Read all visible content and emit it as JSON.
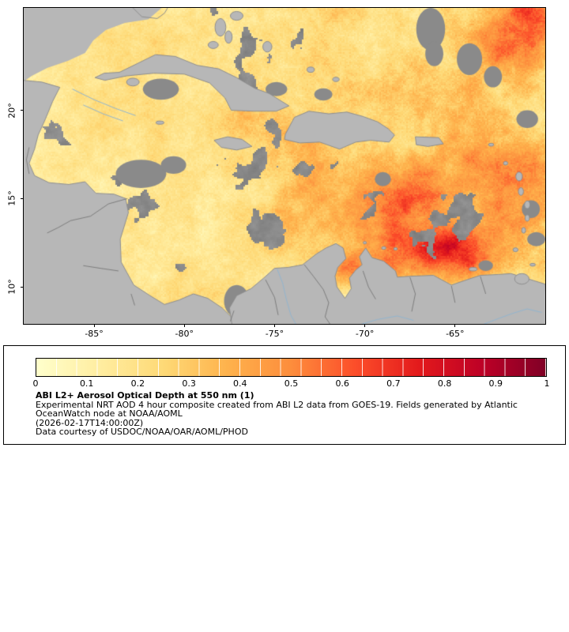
{
  "figure": {
    "background": "#ffffff"
  },
  "map": {
    "extent": {
      "lon_min": -88.9,
      "lon_max": -60.0,
      "lat_min": 7.9,
      "lat_max": 25.8
    },
    "x_ticks": [
      {
        "lon": -85,
        "label": "-85°"
      },
      {
        "lon": -80,
        "label": "-80°"
      },
      {
        "lon": -75,
        "label": "-75°"
      },
      {
        "lon": -70,
        "label": "-70°"
      },
      {
        "lon": -65,
        "label": "-65°"
      }
    ],
    "y_ticks": [
      {
        "lat": 20,
        "label": "20°"
      },
      {
        "lat": 15,
        "label": "15°"
      },
      {
        "lat": 10,
        "label": "10°"
      }
    ],
    "features": {
      "no_data_mask": [
        [
          [
            -88.95,
            25.85
          ],
          [
            -81.2,
            25.85
          ],
          [
            -82.0,
            25.15
          ],
          [
            -83.3,
            24.95
          ],
          [
            -84.35,
            24.55
          ],
          [
            -85.05,
            23.95
          ],
          [
            -85.5,
            23.25
          ],
          [
            -86.45,
            22.8
          ],
          [
            -87.6,
            22.4
          ],
          [
            -88.45,
            21.95
          ],
          [
            -88.95,
            21.6
          ]
        ]
      ],
      "land_polygons": [
        [
          [
            -84.95,
            21.85
          ],
          [
            -84.45,
            22.1
          ],
          [
            -83.6,
            22.15
          ],
          [
            -82.6,
            22.65
          ],
          [
            -81.6,
            23.15
          ],
          [
            -80.5,
            23.05
          ],
          [
            -79.3,
            22.55
          ],
          [
            -78.1,
            22.35
          ],
          [
            -77.1,
            21.85
          ],
          [
            -76.1,
            21.25
          ],
          [
            -75.3,
            20.95
          ],
          [
            -74.2,
            20.25
          ],
          [
            -74.9,
            19.95
          ],
          [
            -76.2,
            19.95
          ],
          [
            -77.4,
            20.0
          ],
          [
            -77.75,
            20.7
          ],
          [
            -78.6,
            21.55
          ],
          [
            -80.0,
            22.05
          ],
          [
            -81.7,
            22.1
          ],
          [
            -83.2,
            21.95
          ],
          [
            -84.4,
            21.7
          ]
        ],
        [
          [
            -74.45,
            18.35
          ],
          [
            -74.4,
            18.65
          ],
          [
            -73.9,
            19.6
          ],
          [
            -73.1,
            19.95
          ],
          [
            -72.0,
            19.8
          ],
          [
            -71.0,
            19.9
          ],
          [
            -70.1,
            19.65
          ],
          [
            -69.3,
            19.35
          ],
          [
            -68.7,
            18.95
          ],
          [
            -68.35,
            18.6
          ],
          [
            -68.65,
            18.2
          ],
          [
            -69.7,
            18.3
          ],
          [
            -70.5,
            18.2
          ],
          [
            -71.4,
            17.8
          ],
          [
            -72.5,
            18.2
          ],
          [
            -73.6,
            18.15
          ]
        ],
        [
          [
            -78.35,
            18.3
          ],
          [
            -77.6,
            18.5
          ],
          [
            -76.8,
            18.35
          ],
          [
            -76.25,
            17.95
          ],
          [
            -77.1,
            17.75
          ],
          [
            -77.95,
            17.9
          ]
        ],
        [
          [
            -67.2,
            18.5
          ],
          [
            -65.9,
            18.45
          ],
          [
            -65.65,
            18.1
          ],
          [
            -66.5,
            17.95
          ],
          [
            -67.15,
            18.05
          ]
        ],
        [
          [
            -88.95,
            21.7
          ],
          [
            -87.9,
            21.6
          ],
          [
            -86.9,
            21.3
          ],
          [
            -87.3,
            20.5
          ],
          [
            -87.7,
            19.5
          ],
          [
            -88.1,
            18.6
          ],
          [
            -88.3,
            17.8
          ],
          [
            -88.6,
            17.0
          ],
          [
            -88.3,
            16.3
          ],
          [
            -87.5,
            15.9
          ],
          [
            -86.4,
            15.8
          ],
          [
            -85.5,
            15.95
          ],
          [
            -84.9,
            15.3
          ],
          [
            -83.9,
            15.25
          ],
          [
            -83.25,
            15.0
          ],
          [
            -83.1,
            14.2
          ],
          [
            -83.55,
            12.7
          ],
          [
            -83.5,
            11.4
          ],
          [
            -82.8,
            10.1
          ],
          [
            -81.9,
            9.5
          ],
          [
            -81.1,
            9.0
          ],
          [
            -80.3,
            9.25
          ],
          [
            -79.5,
            9.6
          ],
          [
            -78.7,
            9.35
          ],
          [
            -77.9,
            8.8
          ],
          [
            -77.3,
            8.2
          ],
          [
            -77.35,
            7.8
          ],
          [
            -88.95,
            7.8
          ]
        ],
        [
          [
            -77.35,
            7.8
          ],
          [
            -77.5,
            8.8
          ],
          [
            -77.1,
            9.5
          ],
          [
            -76.3,
            9.9
          ],
          [
            -75.6,
            10.5
          ],
          [
            -75.0,
            11.05
          ],
          [
            -74.25,
            11.1
          ],
          [
            -73.45,
            11.25
          ],
          [
            -72.7,
            11.85
          ],
          [
            -72.15,
            12.2
          ],
          [
            -71.6,
            12.45
          ],
          [
            -71.2,
            12.2
          ],
          [
            -71.05,
            11.6
          ],
          [
            -71.5,
            11.1
          ],
          [
            -71.65,
            10.6
          ],
          [
            -71.55,
            10.0
          ],
          [
            -71.1,
            9.35
          ],
          [
            -70.75,
            9.9
          ],
          [
            -70.85,
            10.5
          ],
          [
            -70.5,
            10.95
          ],
          [
            -70.15,
            11.25
          ],
          [
            -70.3,
            11.7
          ],
          [
            -69.95,
            12.2
          ],
          [
            -69.6,
            11.65
          ],
          [
            -68.95,
            11.45
          ],
          [
            -68.3,
            10.9
          ],
          [
            -68.2,
            10.55
          ],
          [
            -67.5,
            10.6
          ],
          [
            -66.2,
            10.65
          ],
          [
            -65.2,
            10.1
          ],
          [
            -64.2,
            10.45
          ],
          [
            -63.6,
            10.65
          ],
          [
            -62.6,
            10.7
          ],
          [
            -61.9,
            10.75
          ],
          [
            -60.0,
            10.15
          ],
          [
            -59.9,
            7.8
          ]
        ]
      ],
      "islands": [
        [
          -82.85,
          21.6,
          0.35,
          0.22
        ],
        [
          -78.0,
          24.7,
          0.3,
          0.5
        ],
        [
          -77.55,
          24.15,
          0.2,
          0.35
        ],
        [
          -78.4,
          23.7,
          0.28,
          0.2
        ],
        [
          -77.1,
          25.35,
          0.35,
          0.25
        ],
        [
          -75.4,
          23.6,
          0.25,
          0.3
        ],
        [
          -73.0,
          22.3,
          0.2,
          0.15
        ],
        [
          -71.6,
          21.75,
          0.18,
          0.12
        ],
        [
          -81.35,
          19.3,
          0.22,
          0.09
        ],
        [
          -64.0,
          11.0,
          0.22,
          0.1
        ],
        [
          -70.0,
          12.5,
          0.09,
          0.07
        ],
        [
          -68.95,
          12.2,
          0.12,
          0.08
        ],
        [
          -68.3,
          12.15,
          0.1,
          0.07
        ],
        [
          -61.45,
          16.25,
          0.18,
          0.25
        ],
        [
          -61.35,
          15.4,
          0.14,
          0.22
        ],
        [
          -61.0,
          14.65,
          0.15,
          0.22
        ],
        [
          -61.0,
          13.9,
          0.12,
          0.18
        ],
        [
          -61.2,
          13.2,
          0.11,
          0.16
        ],
        [
          -61.65,
          12.1,
          0.14,
          0.11
        ],
        [
          -61.3,
          10.45,
          0.4,
          0.3
        ],
        [
          -60.7,
          11.25,
          0.15,
          0.08
        ],
        [
          -62.2,
          17.0,
          0.12,
          0.1
        ],
        [
          -63.0,
          18.05,
          0.15,
          0.08
        ]
      ],
      "cloud_patches": [
        [
          -66.35,
          24.6,
          0.8,
          1.2
        ],
        [
          -66.15,
          23.2,
          0.5,
          0.7
        ],
        [
          -64.2,
          22.9,
          0.7,
          0.9
        ],
        [
          -62.9,
          21.9,
          0.5,
          0.6
        ],
        [
          -81.3,
          21.2,
          1.0,
          0.6
        ],
        [
          -82.4,
          16.4,
          1.4,
          0.8
        ],
        [
          -80.6,
          16.9,
          0.7,
          0.5
        ],
        [
          -77.1,
          9.2,
          0.7,
          0.9
        ],
        [
          -69.0,
          16.1,
          0.45,
          0.4
        ],
        [
          -60.8,
          14.4,
          0.5,
          0.5
        ],
        [
          -60.5,
          12.7,
          0.5,
          0.4
        ],
        [
          -74.9,
          21.2,
          0.6,
          0.4
        ],
        [
          -72.3,
          20.9,
          0.5,
          0.35
        ],
        [
          -61.0,
          19.5,
          0.6,
          0.5
        ],
        [
          -63.3,
          11.2,
          0.4,
          0.3
        ]
      ],
      "coastlines": [
        [
          [
            -82.9,
            25.85
          ],
          [
            -82.35,
            25.3
          ],
          [
            -81.5,
            25.2
          ],
          [
            -81.1,
            25.5
          ],
          [
            -80.9,
            25.85
          ]
        ]
      ],
      "borders": [
        [
          [
            -83.15,
            15.0
          ],
          [
            -84.2,
            14.7
          ],
          [
            -85.2,
            14.0
          ],
          [
            -86.3,
            13.75
          ],
          [
            -87.0,
            13.35
          ],
          [
            -87.6,
            13.05
          ]
        ],
        [
          [
            -83.65,
            10.9
          ],
          [
            -84.65,
            11.05
          ],
          [
            -85.6,
            11.2
          ]
        ],
        [
          [
            -82.95,
            9.6
          ],
          [
            -82.75,
            8.95
          ]
        ],
        [
          [
            -77.25,
            8.65
          ],
          [
            -77.45,
            8.05
          ]
        ],
        [
          [
            -73.35,
            11.25
          ],
          [
            -72.85,
            10.6
          ],
          [
            -72.3,
            9.85
          ],
          [
            -72.0,
            9.1
          ],
          [
            -72.2,
            8.3
          ],
          [
            -71.9,
            7.85
          ]
        ],
        [
          [
            -88.6,
            17.9
          ],
          [
            -88.75,
            17.2
          ],
          [
            -88.6,
            16.4
          ]
        ],
        [
          [
            -75.5,
            10.4
          ],
          [
            -75.0,
            9.4
          ],
          [
            -74.8,
            8.4
          ]
        ],
        [
          [
            -70.1,
            10.9
          ],
          [
            -69.8,
            10.0
          ],
          [
            -69.4,
            9.3
          ]
        ],
        [
          [
            -67.5,
            10.55
          ],
          [
            -67.2,
            9.6
          ],
          [
            -67.4,
            8.6
          ]
        ],
        [
          [
            -65.2,
            10.05
          ],
          [
            -65.0,
            9.1
          ]
        ],
        [
          [
            -63.6,
            10.6
          ],
          [
            -63.3,
            9.6
          ]
        ]
      ],
      "rivers": [
        [
          [
            -74.85,
            11.0
          ],
          [
            -74.55,
            10.2
          ],
          [
            -74.35,
            9.3
          ],
          [
            -74.1,
            8.4
          ],
          [
            -73.8,
            7.85
          ]
        ],
        [
          [
            -63.5,
            7.85
          ],
          [
            -62.6,
            8.2
          ],
          [
            -61.8,
            8.5
          ],
          [
            -61.0,
            8.75
          ],
          [
            -60.2,
            8.55
          ]
        ],
        [
          [
            -70.3,
            7.85
          ],
          [
            -69.3,
            8.15
          ],
          [
            -68.2,
            8.35
          ],
          [
            -67.3,
            8.1
          ]
        ],
        [
          [
            -86.2,
            21.2
          ],
          [
            -85.0,
            20.6
          ],
          [
            -83.8,
            20.1
          ],
          [
            -82.7,
            19.7
          ]
        ],
        [
          [
            -85.6,
            20.3
          ],
          [
            -84.5,
            19.8
          ],
          [
            -83.4,
            19.4
          ]
        ]
      ],
      "aod_hotspots": [
        [
          -65.0,
          12.0,
          2.4,
          1.5,
          0.55
        ],
        [
          -70.6,
          11.1,
          2.2,
          1.1,
          0.3
        ],
        [
          -69.3,
          13.8,
          3.2,
          2.2,
          0.26
        ],
        [
          -72.6,
          16.3,
          3.2,
          2.2,
          0.18
        ],
        [
          -67.0,
          15.8,
          2.6,
          2.0,
          0.22
        ],
        [
          -63.0,
          17.6,
          2.6,
          2.4,
          0.2
        ],
        [
          -61.0,
          14.5,
          1.8,
          2.4,
          0.25
        ],
        [
          -75.2,
          13.2,
          2.2,
          1.6,
          0.16
        ],
        [
          -62.6,
          23.6,
          2.2,
          1.8,
          0.22
        ],
        [
          -75.5,
          19.5,
          2.6,
          1.6,
          0.12
        ],
        [
          -66.0,
          20.8,
          3.0,
          2.0,
          0.14
        ],
        [
          -60.3,
          25.3,
          2.0,
          2.0,
          0.28
        ]
      ]
    }
  },
  "colorbar": {
    "ticks": [
      "0",
      "0.1",
      "0.2",
      "0.3",
      "0.4",
      "0.5",
      "0.6",
      "0.7",
      "0.8",
      "0.9",
      "1"
    ],
    "segments": 25,
    "stops": [
      {
        "t": 0.0,
        "color": "#ffffcc"
      },
      {
        "t": 0.125,
        "color": "#ffeda0"
      },
      {
        "t": 0.25,
        "color": "#fed976"
      },
      {
        "t": 0.375,
        "color": "#feb24c"
      },
      {
        "t": 0.5,
        "color": "#fd8d3c"
      },
      {
        "t": 0.625,
        "color": "#fc4e2a"
      },
      {
        "t": 0.75,
        "color": "#e31a1c"
      },
      {
        "t": 0.875,
        "color": "#bd0026"
      },
      {
        "t": 1.0,
        "color": "#800026"
      }
    ]
  },
  "caption": {
    "title": "ABI L2+ Aerosol Optical Depth at 550 nm (1)",
    "lines": [
      "Experimental NRT AOD 4 hour composite created from ABI L2 data from GOES-19. Fields generated by Atlantic",
      "OceanWatch node at NOAA/AOML"
    ],
    "timestamp": "(2026-02-17T14:00:00Z)",
    "credit": "Data courtesy of USDOC/NOAA/OAR/AOML/PHOD"
  },
  "colors": {
    "land": "#b7b7b7",
    "cloud": "#8a8a8a",
    "coast": "#8f8f8f",
    "border": "#6e6e6e",
    "river": "#92b5cf"
  }
}
